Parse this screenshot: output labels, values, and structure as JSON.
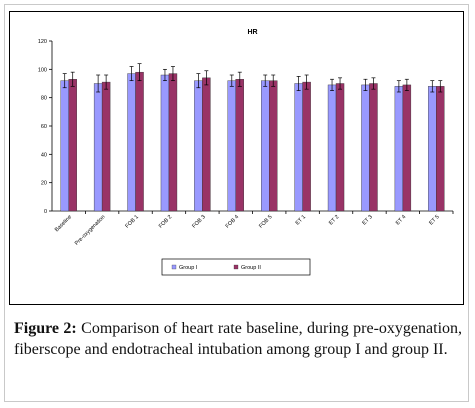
{
  "chart_data": {
    "type": "bar",
    "title": "HR",
    "xlabel": "",
    "ylabel": "",
    "ylim": [
      0,
      120
    ],
    "yticks": [
      0,
      20,
      40,
      60,
      80,
      100,
      120
    ],
    "grid": false,
    "legend_position": "bottom",
    "categories": [
      "Baseline",
      "Pre-oxygenation",
      "FOB 1",
      "FOB 2",
      "FOB 3",
      "FOB 4",
      "FOB 5",
      "ET 1",
      "ET 2",
      "ET 3",
      "ET 4",
      "ET 5"
    ],
    "series": [
      {
        "name": "Group I",
        "color": "#9999ff",
        "values": [
          92,
          90,
          97,
          96,
          92,
          92,
          92,
          90,
          89,
          89,
          88,
          88
        ],
        "error": [
          5,
          6,
          5,
          4,
          5,
          4,
          4,
          5,
          4,
          4,
          4,
          4
        ]
      },
      {
        "name": "Group II",
        "color": "#993366",
        "values": [
          93,
          91,
          98,
          97,
          94,
          93,
          92,
          91,
          90,
          90,
          89,
          88
        ],
        "error": [
          5,
          5,
          6,
          5,
          5,
          5,
          4,
          5,
          4,
          4,
          4,
          4
        ]
      }
    ]
  },
  "caption": {
    "label": "Figure 2:",
    "text": "Comparison of heart rate baseline, during pre-oxygenation, fiberscope and endotracheal intubation among group I and group II."
  }
}
